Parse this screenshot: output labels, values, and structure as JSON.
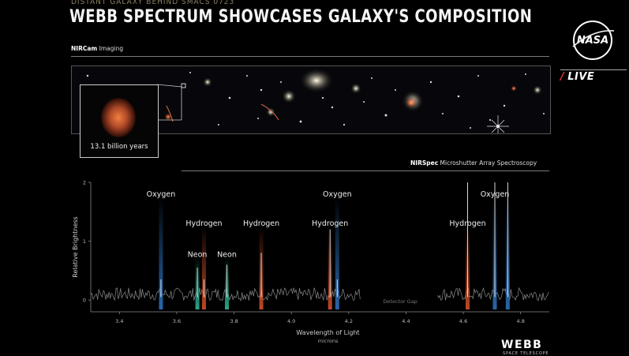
{
  "header": {
    "subtitle": "DISTANT GALAXY BEHIND SMACS 0723",
    "title": "WEBB SPECTRUM SHOWCASES GALAXY'S COMPOSITION"
  },
  "imaging": {
    "label_bold": "NIRCam",
    "label_rest": "Imaging",
    "inset_caption": "13.1 billion years"
  },
  "spectroscopy": {
    "label_bold": "NIRSpec",
    "label_rest": "Microshutter Array Spectroscopy"
  },
  "branding": {
    "nasa": "NASA",
    "live": "LIVE",
    "webb": "WEBB",
    "webb_sub": "SPACE TELESCOPE"
  },
  "chart_data": {
    "type": "line",
    "xlabel": "Wavelength of Light",
    "xunit": "microns",
    "ylabel": "Relative Brightness",
    "xlim": [
      3.3,
      4.9
    ],
    "ylim": [
      -0.2,
      2
    ],
    "xticks": [
      "3.4",
      "3.6",
      "3.8",
      "4.0",
      "4.2",
      "4.4",
      "4.6",
      "4.8"
    ],
    "yticks": [
      "0",
      "1",
      "2"
    ],
    "gap_label": "Detector Gap",
    "gap_range": [
      4.24,
      4.77
    ],
    "lines": [
      {
        "element": "Oxygen",
        "x": 3.545,
        "peak": 0.35,
        "color": "#2f78c8",
        "label_y": 1.8
      },
      {
        "element": "Hydrogen",
        "x": 3.695,
        "peak": 0.35,
        "color": "#e0552a",
        "label_y": 1.3
      },
      {
        "element": "Neon",
        "x": 3.672,
        "peak": 0.55,
        "color": "#2fc4a0",
        "label_y": 0.77
      },
      {
        "element": "Neon",
        "x": 3.775,
        "peak": 0.6,
        "color": "#2fc4a0",
        "label_y": 0.77
      },
      {
        "element": "Hydrogen",
        "x": 3.895,
        "peak": 0.8,
        "color": "#e0552a",
        "label_y": 1.3
      },
      {
        "element": "Hydrogen",
        "x": 4.135,
        "peak": 1.2,
        "color": "#e0552a",
        "label_y": 1.3
      },
      {
        "element": "Oxygen",
        "x": 4.16,
        "peak": 0.35,
        "color": "#2f78c8",
        "label_y": 1.8
      },
      {
        "element": "Hydrogen",
        "x": 4.615,
        "peak": 2.0,
        "color": "#e0552a",
        "label_y": 1.3
      },
      {
        "element": "Oxygen",
        "x": 4.71,
        "peak": 2.0,
        "color": "#2f78c8",
        "label_y": 1.8
      },
      {
        "element": "Oxygen",
        "x": 4.755,
        "peak": 2.0,
        "color": "#2f78c8",
        "label_y": 1.8
      }
    ]
  },
  "colors": {
    "background": "#000000",
    "oxygen": "#2f78c8",
    "hydrogen": "#e0552a",
    "neon": "#2fc4a0",
    "rule": "#7a7a7a"
  }
}
